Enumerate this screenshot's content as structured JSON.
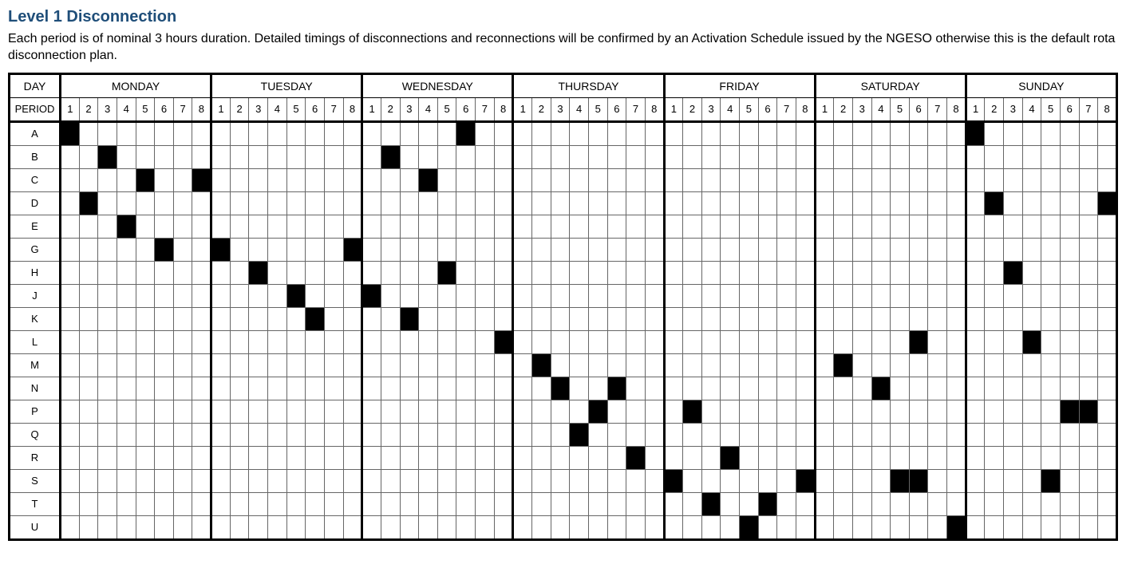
{
  "title": "Level 1 Disconnection",
  "description": "Each period is of nominal 3 hours duration. Detailed timings of disconnections and reconnections will be confirmed by an Activation Schedule issued by the NGESO otherwise this is the default rota disconnection plan.",
  "header_labels": {
    "day": "DAY",
    "period": "PERIOD"
  },
  "days": [
    "MONDAY",
    "TUESDAY",
    "WEDNESDAY",
    "THURSDAY",
    "FRIDAY",
    "SATURDAY",
    "SUNDAY"
  ],
  "periods_per_day": 8,
  "rows": [
    "A",
    "B",
    "C",
    "D",
    "E",
    "G",
    "H",
    "J",
    "K",
    "L",
    "M",
    "N",
    "P",
    "Q",
    "R",
    "S",
    "T",
    "U"
  ],
  "filled": {
    "A": [
      [
        0,
        0
      ],
      [
        2,
        5
      ],
      [
        6,
        0
      ]
    ],
    "B": [
      [
        0,
        2
      ],
      [
        2,
        1
      ]
    ],
    "C": [
      [
        0,
        4
      ],
      [
        0,
        7
      ],
      [
        2,
        3
      ]
    ],
    "D": [
      [
        0,
        1
      ],
      [
        6,
        1
      ],
      [
        6,
        7
      ]
    ],
    "E": [
      [
        0,
        3
      ]
    ],
    "G": [
      [
        0,
        5
      ],
      [
        1,
        0
      ],
      [
        1,
        7
      ]
    ],
    "H": [
      [
        1,
        2
      ],
      [
        2,
        4
      ],
      [
        6,
        2
      ]
    ],
    "J": [
      [
        1,
        4
      ],
      [
        2,
        0
      ]
    ],
    "K": [
      [
        1,
        5
      ],
      [
        2,
        2
      ]
    ],
    "L": [
      [
        2,
        7
      ],
      [
        5,
        5
      ],
      [
        6,
        3
      ]
    ],
    "M": [
      [
        3,
        1
      ],
      [
        5,
        1
      ]
    ],
    "N": [
      [
        3,
        2
      ],
      [
        3,
        5
      ],
      [
        5,
        3
      ]
    ],
    "P": [
      [
        3,
        4
      ],
      [
        4,
        1
      ],
      [
        6,
        5
      ],
      [
        6,
        6
      ]
    ],
    "Q": [
      [
        3,
        3
      ]
    ],
    "R": [
      [
        3,
        6
      ],
      [
        4,
        3
      ]
    ],
    "S": [
      [
        4,
        0
      ],
      [
        4,
        7
      ],
      [
        5,
        4
      ],
      [
        5,
        5
      ],
      [
        6,
        4
      ]
    ],
    "T": [
      [
        4,
        2
      ],
      [
        4,
        5
      ]
    ],
    "U": [
      [
        4,
        4
      ],
      [
        5,
        7
      ]
    ]
  },
  "colors": {
    "title": "#1f4e79",
    "grid_line": "#666666",
    "thick_line": "#000000",
    "fill": "#000000",
    "background": "#ffffff"
  },
  "fonts": {
    "title_size_pt": 15,
    "body_size_pt": 12,
    "cell_size_pt": 10
  }
}
